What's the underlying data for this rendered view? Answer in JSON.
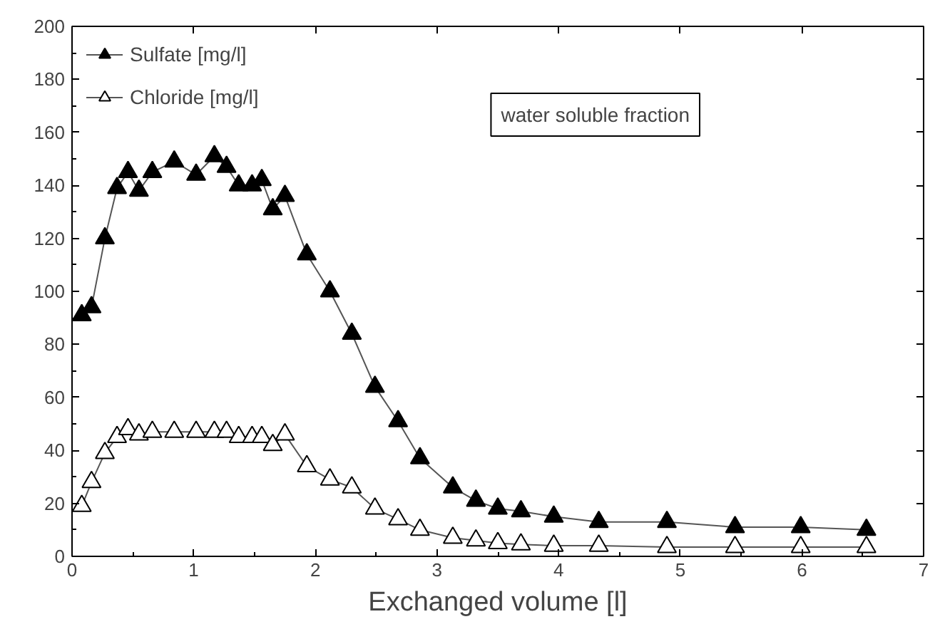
{
  "chart_data": {
    "type": "line",
    "xlabel": "Exchanged volume [l]",
    "xlim": [
      0,
      7
    ],
    "xticks": [
      0,
      1,
      2,
      3,
      4,
      5,
      6,
      7
    ],
    "ylim": [
      0,
      200
    ],
    "yticks": [
      0,
      20,
      40,
      60,
      80,
      100,
      120,
      140,
      160,
      180,
      200
    ],
    "grid": false,
    "legend": "top left",
    "marker": "triangle",
    "line_style": "solid",
    "annotations": [
      "water soluble fraction"
    ],
    "series": [
      {
        "name": "Sulfate [mg/l]",
        "color": "#000000",
        "x": [
          0.08,
          0.16,
          0.27,
          0.37,
          0.46,
          0.55,
          0.66,
          0.84,
          1.02,
          1.17,
          1.27,
          1.37,
          1.48,
          1.56,
          1.65,
          1.75,
          1.93,
          2.12,
          2.3,
          2.49,
          2.68,
          2.86,
          3.13,
          3.32,
          3.5,
          3.69,
          3.96,
          4.33,
          4.89,
          5.45,
          5.99,
          6.53
        ],
        "values": [
          91,
          94,
          120,
          139,
          145,
          138,
          145,
          149,
          144,
          151,
          147,
          140,
          140,
          142,
          131,
          136,
          114,
          100,
          84,
          64,
          51,
          37,
          26,
          21,
          18,
          17,
          15,
          13,
          13,
          11,
          11,
          10
        ]
      },
      {
        "name": "Chloride [mg/l]",
        "color": "#ffffff",
        "x": [
          0.08,
          0.16,
          0.27,
          0.37,
          0.46,
          0.55,
          0.66,
          0.84,
          1.02,
          1.17,
          1.27,
          1.37,
          1.48,
          1.56,
          1.65,
          1.75,
          1.93,
          2.12,
          2.3,
          2.49,
          2.68,
          2.86,
          3.13,
          3.32,
          3.5,
          3.69,
          3.96,
          4.33,
          4.89,
          5.45,
          5.99,
          6.53
        ],
        "values": [
          19,
          28,
          39,
          45,
          48,
          46,
          47,
          47,
          47,
          47,
          47,
          45,
          45,
          45,
          42,
          46,
          34,
          29,
          26,
          18,
          14,
          10,
          7,
          6,
          5,
          4.5,
          4,
          4,
          3.5,
          3.5,
          3.5,
          3.5
        ]
      }
    ]
  }
}
